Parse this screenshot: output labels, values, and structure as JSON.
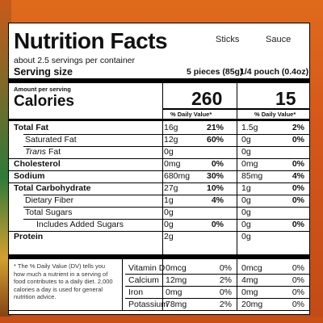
{
  "title": "Nutrition Facts",
  "columns": {
    "col1": "Sticks",
    "col2": "Sauce"
  },
  "servings_per_container": "about 2.5 servings per container",
  "serving_size": {
    "label": "Serving size",
    "col1": "5 pieces (85g)",
    "col2": "1/4 pouch (0.4oz)"
  },
  "amount_per_serving": "Amount per serving",
  "calories": {
    "label": "Calories",
    "col1": "260",
    "col2": "15"
  },
  "dv_header": "% Daily Value*",
  "nutrients": [
    {
      "label": "Total Fat",
      "bold": true,
      "indent": 0,
      "a1": "16g",
      "p1": "21%",
      "a2": "1.5g",
      "p2": "2%"
    },
    {
      "label": "Saturated Fat",
      "bold": false,
      "indent": 1,
      "a1": "12g",
      "p1": "60%",
      "a2": "0g",
      "p2": "0%"
    },
    {
      "label": "Trans Fat",
      "bold": false,
      "indent": 1,
      "italic": "Trans",
      "a1": "0g",
      "p1": "",
      "a2": "0g",
      "p2": ""
    },
    {
      "label": "Cholesterol",
      "bold": true,
      "indent": 0,
      "a1": "0mg",
      "p1": "0%",
      "a2": "0mg",
      "p2": "0%"
    },
    {
      "label": "Sodium",
      "bold": true,
      "indent": 0,
      "a1": "680mg",
      "p1": "30%",
      "a2": "85mg",
      "p2": "4%"
    },
    {
      "label": "Total Carbohydrate",
      "bold": true,
      "indent": 0,
      "a1": "27g",
      "p1": "10%",
      "a2": "1g",
      "p2": "0%"
    },
    {
      "label": "Dietary Fiber",
      "bold": false,
      "indent": 1,
      "a1": "1g",
      "p1": "4%",
      "a2": "0g",
      "p2": "0%"
    },
    {
      "label": "Total Sugars",
      "bold": false,
      "indent": 1,
      "a1": "0g",
      "p1": "",
      "a2": "0g",
      "p2": ""
    },
    {
      "label": "Includes Added Sugars",
      "bold": false,
      "indent": 2,
      "a1": "0g",
      "p1": "0%",
      "a2": "0g",
      "p2": "0%"
    },
    {
      "label": "Protein",
      "bold": true,
      "indent": 0,
      "a1": "2g",
      "p1": "",
      "a2": "0g",
      "p2": ""
    }
  ],
  "footnote": "* The % Daily Value (DV) tells you how much a nutrient in a serving of food contributes to a daily diet. 2,000 calories a day is used for general nutrition advice.",
  "minerals": [
    {
      "label": "Vitamin D",
      "a1": "0mcg",
      "p1": "0%",
      "a2": "0mcg",
      "p2": "0%"
    },
    {
      "label": "Calcium",
      "a1": "12mg",
      "p1": "2%",
      "a2": "4mg",
      "p2": "0%"
    },
    {
      "label": "Iron",
      "a1": "0mg",
      "p1": "0%",
      "a2": "0mg",
      "p2": "0%"
    },
    {
      "label": "Potassium",
      "a1": "78mg",
      "p1": "2%",
      "a2": "20mg",
      "p2": "0%"
    }
  ],
  "colors": {
    "background": "#d4571a",
    "label": "#ffffff",
    "ink": "#111111"
  }
}
